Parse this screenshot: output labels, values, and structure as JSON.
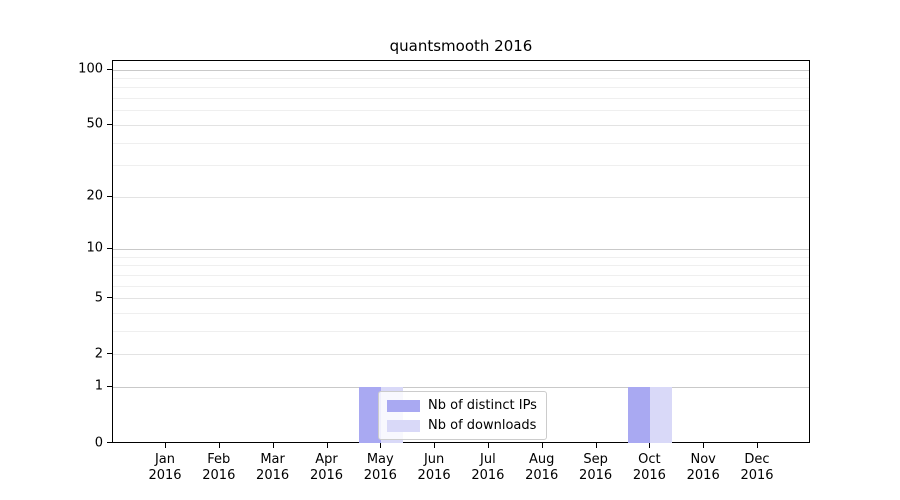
{
  "chart_data": {
    "type": "bar",
    "title": "quantsmooth 2016",
    "categories": [
      "Jan",
      "Feb",
      "Mar",
      "Apr",
      "May",
      "Jun",
      "Jul",
      "Aug",
      "Sep",
      "Oct",
      "Nov",
      "Dec"
    ],
    "year_label": "2016",
    "series": [
      {
        "name": "Nb of distinct IPs",
        "color": "#a9a9f2",
        "values": [
          0,
          0,
          0,
          0,
          1,
          0,
          0,
          0,
          0,
          1,
          0,
          0
        ]
      },
      {
        "name": "Nb of downloads",
        "color": "#d9d9f8",
        "values": [
          0,
          0,
          0,
          0,
          1,
          0,
          0,
          0,
          0,
          1,
          0,
          0
        ]
      }
    ],
    "xlabel": "",
    "ylabel": "",
    "y_axis": {
      "scale": "log1p",
      "ticks": [
        0,
        1,
        2,
        5,
        10,
        20,
        50,
        100
      ],
      "major_grid_values": [
        1,
        10,
        100
      ],
      "mid_grid_values": [
        2,
        5,
        20,
        50
      ],
      "minor_grid_values": [
        3,
        4,
        6,
        7,
        8,
        9,
        30,
        40,
        60,
        70,
        80,
        90
      ],
      "ylim": [
        0,
        113
      ]
    },
    "grid": true,
    "legend_position": "lower center"
  }
}
